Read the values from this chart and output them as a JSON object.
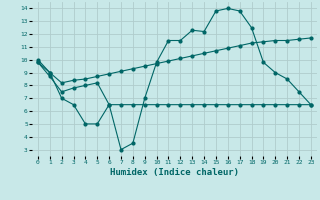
{
  "xlabel": "Humidex (Indice chaleur)",
  "background_color": "#c8e8e8",
  "grid_color": "#b0cccc",
  "line_color": "#006666",
  "xlim": [
    -0.5,
    23.5
  ],
  "ylim": [
    2.5,
    14.5
  ],
  "xticks": [
    0,
    1,
    2,
    3,
    4,
    5,
    6,
    7,
    8,
    9,
    10,
    11,
    12,
    13,
    14,
    15,
    16,
    17,
    18,
    19,
    20,
    21,
    22,
    23
  ],
  "yticks": [
    3,
    4,
    5,
    6,
    7,
    8,
    9,
    10,
    11,
    12,
    13,
    14
  ],
  "line1_x": [
    0,
    1,
    2,
    3,
    4,
    5,
    6,
    7,
    8,
    9,
    10,
    11,
    12,
    13,
    14,
    15,
    16,
    17,
    18,
    19,
    20,
    21,
    22,
    23
  ],
  "line1_y": [
    10,
    9,
    7,
    6.5,
    5,
    5,
    6.5,
    3,
    3.5,
    7,
    9.8,
    11.5,
    11.5,
    12.3,
    12.2,
    13.8,
    14,
    13.8,
    12.5,
    9.8,
    9,
    8.5,
    7.5,
    6.5
  ],
  "line2_x": [
    0,
    1,
    2,
    3,
    4,
    5,
    6,
    7,
    8,
    9,
    10,
    11,
    12,
    13,
    14,
    15,
    16,
    17,
    18,
    19,
    20,
    21,
    22,
    23
  ],
  "line2_y": [
    9.8,
    9.0,
    8.2,
    8.4,
    8.5,
    8.7,
    8.9,
    9.1,
    9.3,
    9.5,
    9.7,
    9.9,
    10.1,
    10.3,
    10.5,
    10.7,
    10.9,
    11.1,
    11.3,
    11.4,
    11.5,
    11.5,
    11.6,
    11.7
  ],
  "line3_x": [
    0,
    1,
    2,
    3,
    4,
    5,
    6,
    7,
    8,
    9,
    10,
    11,
    12,
    13,
    14,
    15,
    16,
    17,
    18,
    19,
    20,
    21,
    22,
    23
  ],
  "line3_y": [
    9.8,
    8.7,
    7.5,
    7.8,
    8.0,
    8.2,
    6.5,
    6.5,
    6.5,
    6.5,
    6.5,
    6.5,
    6.5,
    6.5,
    6.5,
    6.5,
    6.5,
    6.5,
    6.5,
    6.5,
    6.5,
    6.5,
    6.5,
    6.5
  ],
  "xlabel_fontsize": 6.5,
  "tick_fontsize": 4.5
}
